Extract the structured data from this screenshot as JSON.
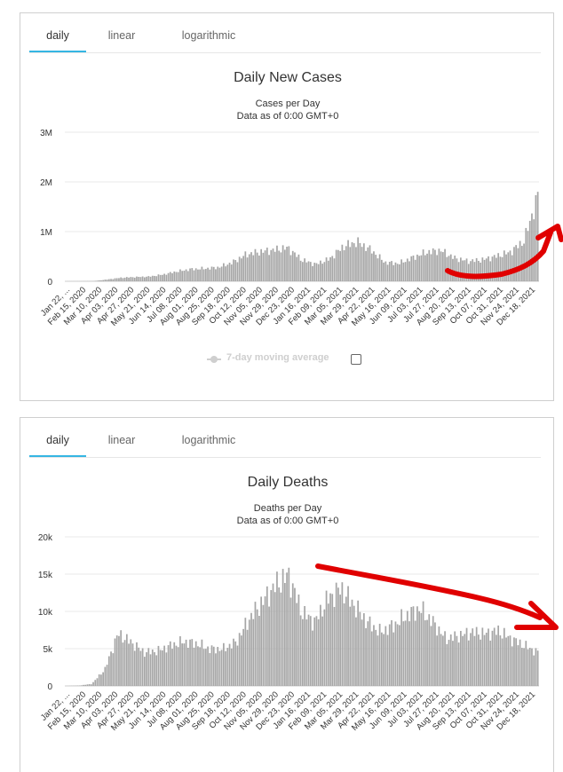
{
  "tabs": [
    "daily",
    "linear",
    "logarithmic"
  ],
  "legend": {
    "label": "7-day moving average"
  },
  "colors": {
    "bar": "#a6a6a6",
    "grid": "#e8e8e8",
    "tab_active": "#35b6e3",
    "annotation": "#e00000"
  },
  "chart_data": [
    {
      "type": "bar",
      "title": "Daily New Cases",
      "subtitle": "Cases per Day",
      "subtitle2": "Data as of 0:00 GMT+0",
      "ylim": [
        0,
        3000000
      ],
      "yticks": [
        0,
        1000000,
        2000000,
        3000000
      ],
      "ytick_labels": [
        "0",
        "1M",
        "2M",
        "3M"
      ],
      "x_tick_labels": [
        "Jan 22, ...",
        "Feb 15, 2020",
        "Mar 10, 2020",
        "Apr 03, 2020",
        "Apr 27, 2020",
        "May 21, 2020",
        "Jun 14, 2020",
        "Jul 08, 2020",
        "Aug 01, 2020",
        "Aug 25, 2020",
        "Sep 18, 2020",
        "Oct 12, 2020",
        "Nov 05, 2020",
        "Nov 29, 2020",
        "Dec 23, 2020",
        "Jan 16, 2021",
        "Feb 09, 2021",
        "Mar 05, 2021",
        "Mar 29, 2021",
        "Apr 22, 2021",
        "May 16, 2021",
        "Jun 09, 2021",
        "Jul 03, 2021",
        "Jul 27, 2021",
        "Aug 20, 2021",
        "Sep 13, 2021",
        "Oct 07, 2021",
        "Oct 31, 2021",
        "Nov 24, 2021",
        "Dec 18, 2021"
      ],
      "series": [
        {
          "name": "Cases",
          "values": [
            0,
            2000,
            5000,
            40000,
            80000,
            95000,
            105000,
            150000,
            220000,
            270000,
            285000,
            310000,
            420000,
            600000,
            660000,
            700000,
            750000,
            480000,
            380000,
            500000,
            780000,
            880000,
            700000,
            420000,
            400000,
            530000,
            650000,
            690000,
            520000,
            450000,
            480000,
            560000,
            650000,
            900000,
            1900000
          ]
        }
      ]
    },
    {
      "type": "bar",
      "title": "Daily Deaths",
      "subtitle": "Deaths per Day",
      "subtitle2": "Data as of 0:00 GMT+0",
      "ylim": [
        0,
        20000
      ],
      "yticks": [
        0,
        5000,
        10000,
        15000,
        20000
      ],
      "ytick_labels": [
        "0",
        "5k",
        "10k",
        "15k",
        "20k"
      ],
      "x_tick_labels": [
        "Jan 22, ...",
        "Feb 15, 2020",
        "Mar 10, 2020",
        "Apr 03, 2020",
        "Apr 27, 2020",
        "May 21, 2020",
        "Jun 14, 2020",
        "Jul 08, 2020",
        "Aug 01, 2020",
        "Aug 25, 2020",
        "Sep 18, 2020",
        "Oct 12, 2020",
        "Nov 05, 2020",
        "Nov 29, 2020",
        "Dec 23, 2020",
        "Jan 16, 2021",
        "Feb 09, 2021",
        "Mar 05, 2021",
        "Mar 29, 2021",
        "Apr 22, 2021",
        "May 16, 2021",
        "Jun 09, 2021",
        "Jul 03, 2021",
        "Jul 27, 2021",
        "Aug 20, 2021",
        "Sep 13, 2021",
        "Oct 07, 2021",
        "Oct 31, 2021",
        "Nov 24, 2021",
        "Dec 18, 2021"
      ],
      "series": [
        {
          "name": "Deaths",
          "values": [
            0,
            50,
            300,
            2500,
            7800,
            6500,
            5000,
            5200,
            6000,
            6600,
            6300,
            5500,
            5500,
            6500,
            10000,
            12500,
            15000,
            16500,
            11000,
            9500,
            13000,
            14500,
            12000,
            9500,
            8000,
            9000,
            10500,
            11500,
            9500,
            7000,
            7500,
            8000,
            7800,
            8200,
            7000,
            6000,
            5000
          ]
        }
      ]
    }
  ]
}
